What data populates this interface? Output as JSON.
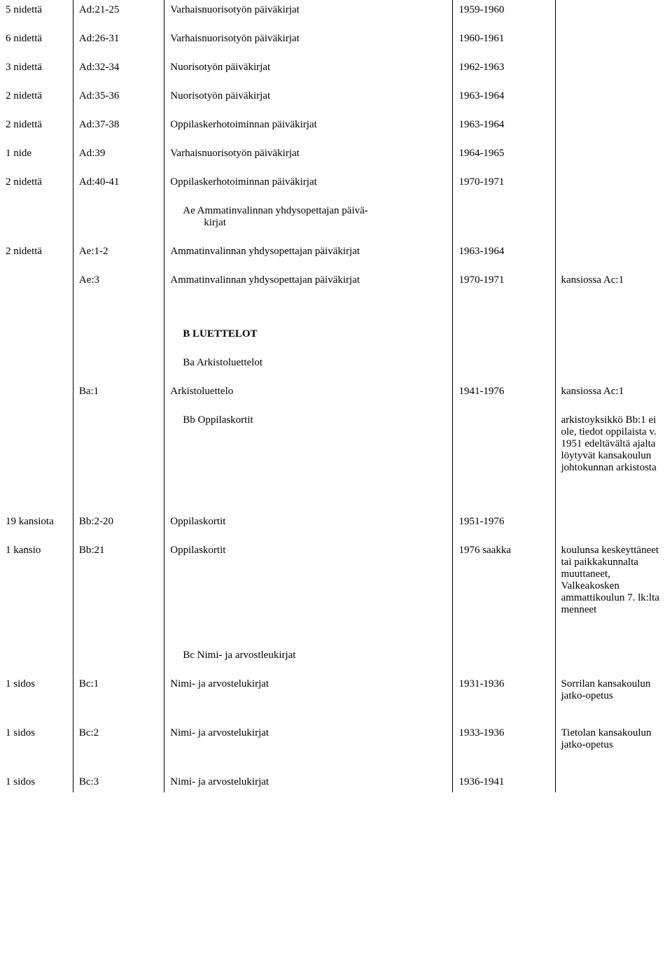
{
  "rows": [
    {
      "c1": "5 nidettä",
      "c2": "Ad:21-25",
      "c3": "Varhaisnuorisotyön päiväkirjat",
      "c4": "1959-1960",
      "c5": ""
    },
    {
      "c1": "6 nidettä",
      "c2": "Ad:26-31",
      "c3": "Varhaisnuorisotyön päiväkirjat",
      "c4": "1960-1961",
      "c5": ""
    },
    {
      "c1": "3 nidettä",
      "c2": "Ad:32-34",
      "c3": "Nuorisotyön päiväkirjat",
      "c4": "1962-1963",
      "c5": ""
    },
    {
      "c1": "2 nidettä",
      "c2": "Ad:35-36",
      "c3": "Nuorisotyön päiväkirjat",
      "c4": "1963-1964",
      "c5": ""
    },
    {
      "c1": "2 nidettä",
      "c2": "Ad:37-38",
      "c3": "Oppilaskerhotoiminnan päiväkirjat",
      "c4": "1963-1964",
      "c5": ""
    },
    {
      "c1": "1 nide",
      "c2": "Ad:39",
      "c3": "Varhaisnuorisotyön päiväkirjat",
      "c4": "1964-1965",
      "c5": ""
    },
    {
      "c1": "2 nidettä",
      "c2": "Ad:40-41",
      "c3": "Oppilaskerhotoiminnan päiväkirjat",
      "c4": "1970-1971",
      "c5": ""
    }
  ],
  "sub_ae": {
    "line1": "Ae Ammatinvalinnan yhdysopettajan päivä-",
    "line2": "kirjat"
  },
  "row_ae1": {
    "c1": "2 nidettä",
    "c2": "Ae:1-2",
    "c3": "Ammatinvalinnan yhdysopettajan päiväkirjat",
    "c4": "1963-1964",
    "c5": ""
  },
  "row_ae3": {
    "c1": "",
    "c2": "Ae:3",
    "c3": "Ammatinvalinnan yhdysopettajan päiväkirjat",
    "c4": "1970-1971",
    "c5": "kansiossa Ac:1"
  },
  "section_B": {
    "heading": "B   LUETTELOT",
    "sub_ba": "Ba Arkistoluettelot"
  },
  "row_ba1": {
    "c1": "",
    "c2": "Ba:1",
    "c3": "Arkistoluettelo",
    "c4": "1941-1976",
    "c5": "kansiossa Ac:1"
  },
  "sub_bb": "Bb Oppilaskortit",
  "note_bb": "arkistoyksikkö Bb:1 ei ole, tiedot oppilaista v. 1951 edeltävältä ajalta löytyvät kansakoulun johtokunnan arkistosta",
  "row_bb2": {
    "c1": "19 kansiota",
    "c2": "Bb:2-20",
    "c3": "Oppilaskortit",
    "c4": "1951-1976",
    "c5": ""
  },
  "row_bb21": {
    "c1": "1 kansio",
    "c2": "Bb:21",
    "c3": "Oppilaskortit",
    "c4": "1976 saakka",
    "c5": "koulunsa keskeyttäneet tai paikkakunnalta muuttaneet, Valkeakosken ammattikoulun 7. lk:lta menneet"
  },
  "sub_bc": "Bc Nimi- ja arvostleukirjat",
  "row_bc1": {
    "c1": "1 sidos",
    "c2": "Bc:1",
    "c3": "Nimi- ja arvostelukirjat",
    "c4": "1931-1936",
    "c5": "Sorrilan kansakoulun jatko-opetus"
  },
  "row_bc2": {
    "c1": "1 sidos",
    "c2": "Bc:2",
    "c3": "Nimi- ja arvostelukirjat",
    "c4": "1933-1936",
    "c5": "Tietolan kansakoulun jatko-opetus"
  },
  "row_bc3": {
    "c1": "1 sidos",
    "c2": "Bc:3",
    "c3": "Nimi- ja arvostelukirjat",
    "c4": "1936-1941",
    "c5": ""
  }
}
